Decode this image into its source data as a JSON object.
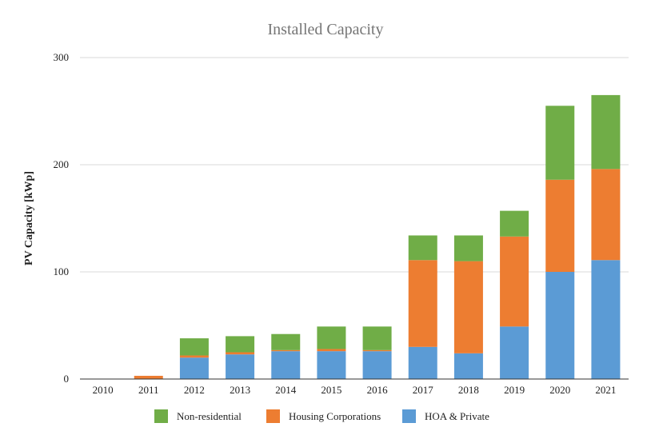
{
  "chart_data": {
    "type": "bar",
    "stacked": true,
    "title": "Installed Capacity",
    "xlabel": "",
    "ylabel": "PV Capacity [kWp]",
    "ylim": [
      0,
      300
    ],
    "yticks": [
      0,
      100,
      200,
      300
    ],
    "grid": true,
    "legend_position": "bottom",
    "categories": [
      "2010",
      "2011",
      "2012",
      "2013",
      "2014",
      "2015",
      "2016",
      "2017",
      "2018",
      "2019",
      "2020",
      "2021"
    ],
    "series": [
      {
        "name": "HOA & Private",
        "color": "#5b9bd5",
        "values": [
          0,
          0,
          20,
          23,
          26,
          26,
          26,
          30,
          24,
          49,
          100,
          111
        ]
      },
      {
        "name": "Housing Corporations",
        "color": "#ed7d31",
        "values": [
          0,
          3,
          2,
          2,
          1,
          2,
          1,
          81,
          86,
          84,
          86,
          85
        ]
      },
      {
        "name": "Non-residential",
        "color": "#70ad47",
        "values": [
          0,
          0,
          16,
          15,
          15,
          21,
          22,
          23,
          24,
          24,
          69,
          69
        ]
      }
    ],
    "legend_order": [
      "Non-residential",
      "Housing Corporations",
      "HOA & Private"
    ]
  }
}
